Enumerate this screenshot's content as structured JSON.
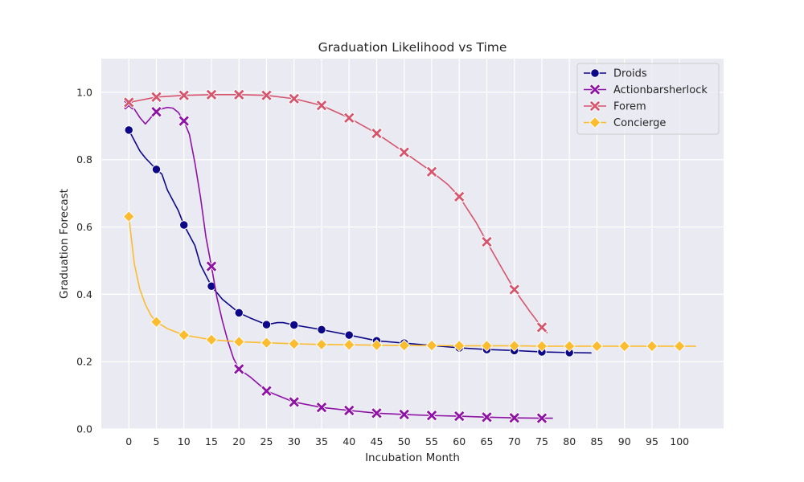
{
  "chart_data": {
    "type": "line",
    "title": "Graduation Likelihood vs Time",
    "xlabel": "Incubation Month",
    "ylabel": "Graduation Forecast",
    "xlim": [
      -5,
      108
    ],
    "ylim": [
      0,
      1.1
    ],
    "xticks": [
      0,
      5,
      10,
      15,
      20,
      25,
      30,
      35,
      40,
      45,
      50,
      55,
      60,
      65,
      70,
      75,
      80,
      85,
      90,
      95,
      100
    ],
    "yticks": [
      0.0,
      0.2,
      0.4,
      0.6,
      0.8,
      1.0
    ],
    "grid": true,
    "legend_position": "top-right",
    "series": [
      {
        "name": "Droids",
        "color": "#0d0887",
        "marker": "circle",
        "marker_x": [
          0,
          5,
          10,
          15,
          20,
          25,
          30,
          35,
          40,
          45,
          50,
          55,
          60,
          65,
          70,
          75,
          80
        ],
        "marker_y": [
          0.888,
          0.771,
          0.606,
          0.424,
          0.345,
          0.31,
          0.309,
          0.295,
          0.279,
          0.262,
          0.255,
          0.248,
          0.241,
          0.236,
          0.233,
          0.229,
          0.227
        ],
        "line": [
          [
            0,
            0.888
          ],
          [
            2,
            0.826
          ],
          [
            3,
            0.805
          ],
          [
            5,
            0.771
          ],
          [
            6,
            0.757
          ],
          [
            7,
            0.71
          ],
          [
            9,
            0.648
          ],
          [
            10,
            0.606
          ],
          [
            12,
            0.545
          ],
          [
            13,
            0.488
          ],
          [
            15,
            0.424
          ],
          [
            17,
            0.385
          ],
          [
            20,
            0.345
          ],
          [
            22,
            0.33
          ],
          [
            25,
            0.31
          ],
          [
            27,
            0.316
          ],
          [
            28,
            0.316
          ],
          [
            30,
            0.309
          ],
          [
            35,
            0.295
          ],
          [
            40,
            0.279
          ],
          [
            45,
            0.262
          ],
          [
            50,
            0.255
          ],
          [
            55,
            0.248
          ],
          [
            60,
            0.241
          ],
          [
            65,
            0.236
          ],
          [
            70,
            0.233
          ],
          [
            75,
            0.229
          ],
          [
            80,
            0.227
          ],
          [
            84,
            0.226
          ]
        ]
      },
      {
        "name": "Actionbarsherlock",
        "color": "#8d12a5",
        "marker": "x",
        "marker_x": [
          0,
          5,
          10,
          15,
          20,
          25,
          30,
          35,
          40,
          45,
          50,
          55,
          60,
          65,
          70,
          75
        ],
        "marker_y": [
          0.963,
          0.942,
          0.915,
          0.483,
          0.178,
          0.113,
          0.08,
          0.064,
          0.055,
          0.047,
          0.043,
          0.04,
          0.038,
          0.035,
          0.033,
          0.032
        ],
        "line": [
          [
            0,
            0.963
          ],
          [
            1,
            0.95
          ],
          [
            2,
            0.925
          ],
          [
            3,
            0.906
          ],
          [
            4,
            0.925
          ],
          [
            5,
            0.942
          ],
          [
            6,
            0.951
          ],
          [
            7,
            0.955
          ],
          [
            8,
            0.953
          ],
          [
            9,
            0.94
          ],
          [
            10,
            0.915
          ],
          [
            11,
            0.875
          ],
          [
            12,
            0.79
          ],
          [
            13,
            0.69
          ],
          [
            14,
            0.57
          ],
          [
            15,
            0.483
          ],
          [
            16,
            0.39
          ],
          [
            17,
            0.32
          ],
          [
            18,
            0.26
          ],
          [
            19,
            0.21
          ],
          [
            20,
            0.178
          ],
          [
            22,
            0.155
          ],
          [
            25,
            0.113
          ],
          [
            30,
            0.08
          ],
          [
            35,
            0.064
          ],
          [
            40,
            0.055
          ],
          [
            45,
            0.047
          ],
          [
            50,
            0.043
          ],
          [
            55,
            0.04
          ],
          [
            60,
            0.038
          ],
          [
            65,
            0.035
          ],
          [
            70,
            0.033
          ],
          [
            75,
            0.032
          ],
          [
            77,
            0.032
          ]
        ]
      },
      {
        "name": "Forem",
        "color": "#d6556d",
        "marker": "x",
        "marker_x": [
          0,
          5,
          10,
          15,
          20,
          25,
          30,
          35,
          40,
          45,
          50,
          55,
          60,
          65,
          70,
          75
        ],
        "marker_y": [
          0.97,
          0.986,
          0.991,
          0.993,
          0.993,
          0.991,
          0.981,
          0.961,
          0.924,
          0.878,
          0.822,
          0.764,
          0.69,
          0.556,
          0.414,
          0.302
        ],
        "line": [
          [
            0,
            0.97
          ],
          [
            5,
            0.986
          ],
          [
            10,
            0.991
          ],
          [
            15,
            0.993
          ],
          [
            20,
            0.993
          ],
          [
            25,
            0.991
          ],
          [
            30,
            0.981
          ],
          [
            35,
            0.961
          ],
          [
            40,
            0.924
          ],
          [
            45,
            0.878
          ],
          [
            50,
            0.822
          ],
          [
            55,
            0.764
          ],
          [
            58,
            0.725
          ],
          [
            60,
            0.69
          ],
          [
            63,
            0.615
          ],
          [
            65,
            0.556
          ],
          [
            68,
            0.47
          ],
          [
            70,
            0.414
          ],
          [
            73,
            0.345
          ],
          [
            75,
            0.302
          ],
          [
            76,
            0.285
          ]
        ]
      },
      {
        "name": "Concierge",
        "color": "#fbbc2f",
        "marker": "diamond",
        "marker_x": [
          0,
          5,
          10,
          15,
          20,
          25,
          30,
          35,
          40,
          45,
          50,
          55,
          60,
          65,
          70,
          75,
          80,
          85,
          90,
          95,
          100
        ],
        "marker_y": [
          0.631,
          0.318,
          0.279,
          0.265,
          0.259,
          0.256,
          0.253,
          0.251,
          0.25,
          0.249,
          0.248,
          0.248,
          0.247,
          0.247,
          0.247,
          0.246,
          0.246,
          0.246,
          0.246,
          0.246,
          0.246
        ],
        "line": [
          [
            0,
            0.631
          ],
          [
            0.5,
            0.56
          ],
          [
            1,
            0.49
          ],
          [
            2,
            0.415
          ],
          [
            3,
            0.37
          ],
          [
            4,
            0.338
          ],
          [
            5,
            0.318
          ],
          [
            7,
            0.298
          ],
          [
            10,
            0.279
          ],
          [
            15,
            0.265
          ],
          [
            20,
            0.259
          ],
          [
            25,
            0.256
          ],
          [
            30,
            0.253
          ],
          [
            35,
            0.251
          ],
          [
            40,
            0.25
          ],
          [
            45,
            0.249
          ],
          [
            50,
            0.248
          ],
          [
            55,
            0.248
          ],
          [
            60,
            0.247
          ],
          [
            65,
            0.247
          ],
          [
            70,
            0.247
          ],
          [
            75,
            0.246
          ],
          [
            80,
            0.246
          ],
          [
            85,
            0.246
          ],
          [
            90,
            0.246
          ],
          [
            95,
            0.246
          ],
          [
            100,
            0.246
          ],
          [
            103,
            0.246
          ]
        ]
      }
    ]
  }
}
